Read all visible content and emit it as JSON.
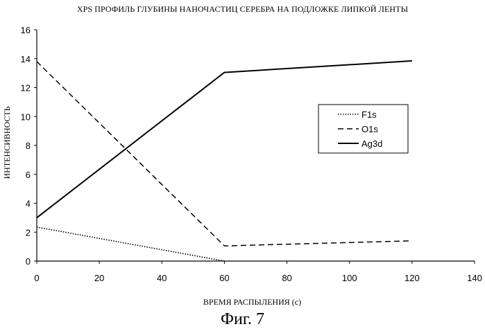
{
  "chart_data": {
    "type": "line",
    "title": "XPS ПРОФИЛЬ ГЛУБИНЫ НАНОЧАСТИЦ СЕРЕБРА НА ПОДЛОЖКЕ ЛИПКОЙ ЛЕНТЫ",
    "xlabel": "ВРЕМЯ РАСПЫЛЕНИЯ (с)",
    "ylabel": "ИНТЕНСИВНОСТЬ",
    "xlim": [
      0,
      140
    ],
    "ylim": [
      0,
      16
    ],
    "xticks": [
      0,
      20,
      40,
      60,
      80,
      100,
      120,
      140
    ],
    "yticks": [
      0,
      2,
      4,
      6,
      8,
      10,
      12,
      14,
      16
    ],
    "grid": false,
    "legend_position": "right",
    "series": [
      {
        "name": "F1s",
        "style": "dotted",
        "x": [
          0,
          60
        ],
        "y": [
          2.35,
          0
        ]
      },
      {
        "name": "O1s",
        "style": "dashed",
        "x": [
          0,
          60,
          120
        ],
        "y": [
          13.8,
          1.05,
          1.4
        ]
      },
      {
        "name": "Ag3d",
        "style": "solid",
        "x": [
          0,
          60,
          120
        ],
        "y": [
          3.0,
          13.05,
          13.85
        ]
      }
    ]
  },
  "caption": "Фиг. 7"
}
